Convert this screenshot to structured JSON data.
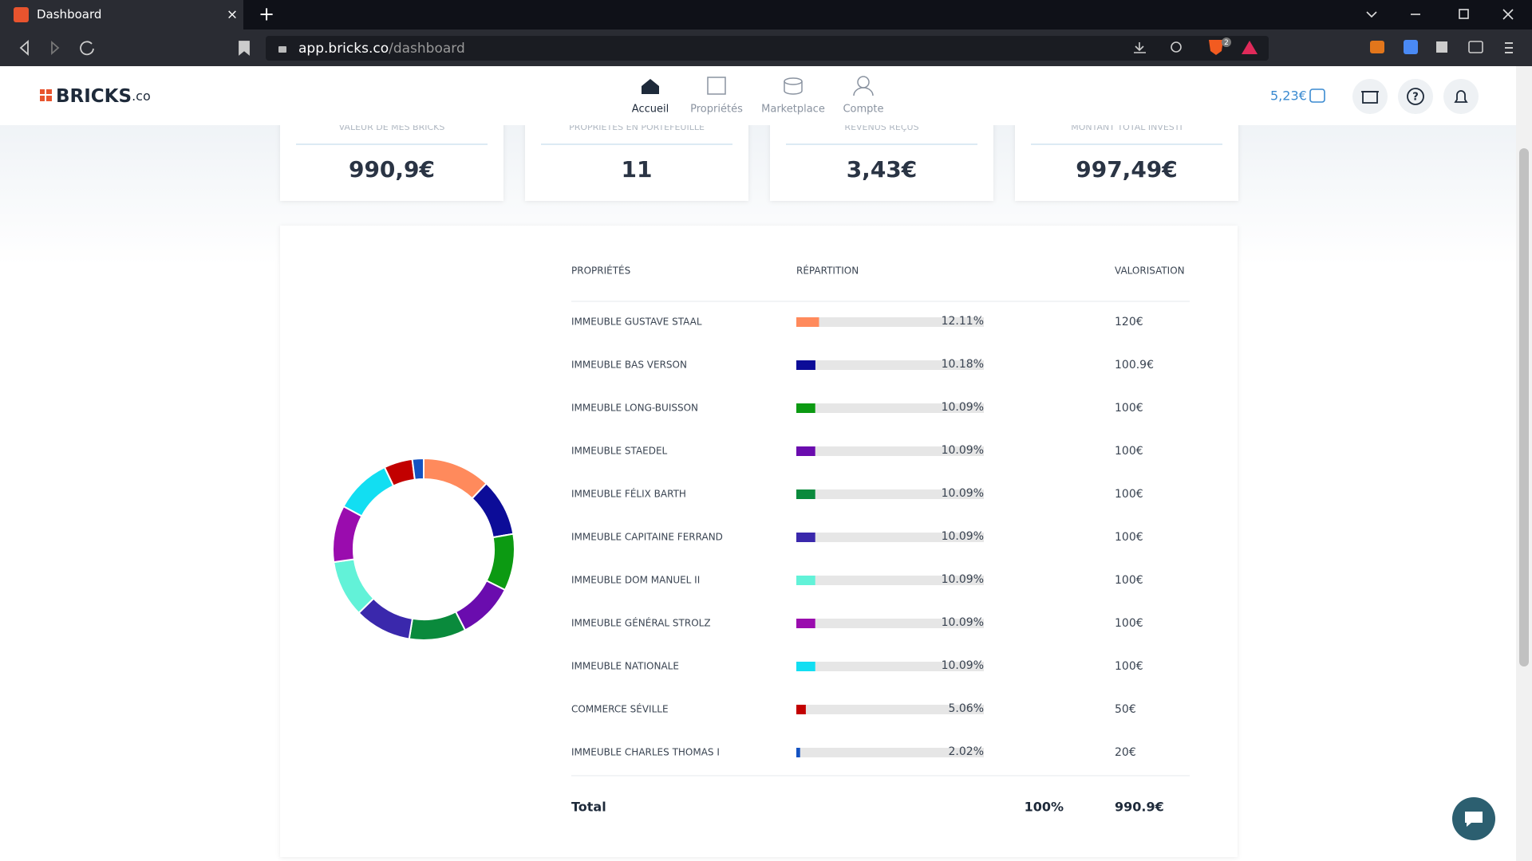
{
  "browser": {
    "tab_title": "Dashboard",
    "url_host": "app.bricks.co",
    "url_path": "/dashboard",
    "shield_count": "2"
  },
  "header": {
    "logo": "BRICKS",
    "logo_suffix": ".co",
    "nav": [
      "Accueil",
      "Propriétés",
      "Marketplace",
      "Compte"
    ],
    "balance": "5,23€"
  },
  "stats": [
    {
      "label": "VALEUR DE MES BRICKS",
      "value": "990,9€"
    },
    {
      "label": "PROPRIÉTÉS EN PORTEFEUILLE",
      "value": "11"
    },
    {
      "label": "REVENUS REÇUS",
      "value": "3,43€"
    },
    {
      "label": "MONTANT TOTAL INVESTI",
      "value": "997,49€"
    }
  ],
  "table": {
    "columns": [
      "PROPRIÉTÉS",
      "RÉPARTITION",
      "VALORISATION"
    ],
    "rows": [
      {
        "name": "IMMEUBLE GUSTAVE STAAL",
        "percent": 12.11,
        "percent_label": "12.11%",
        "valuation": "120€",
        "color": "#ff8a5c"
      },
      {
        "name": "IMMEUBLE BAS VERSON",
        "percent": 10.18,
        "percent_label": "10.18%",
        "valuation": "100.9€",
        "color": "#0c0c98"
      },
      {
        "name": "IMMEUBLE LONG-BUISSON",
        "percent": 10.09,
        "percent_label": "10.09%",
        "valuation": "100€",
        "color": "#0c9a12"
      },
      {
        "name": "IMMEUBLE STAEDEL",
        "percent": 10.09,
        "percent_label": "10.09%",
        "valuation": "100€",
        "color": "#6a0cae"
      },
      {
        "name": "IMMEUBLE FÉLIX BARTH",
        "percent": 10.09,
        "percent_label": "10.09%",
        "valuation": "100€",
        "color": "#0a8a3c"
      },
      {
        "name": "IMMEUBLE CAPITAINE FERRAND",
        "percent": 10.09,
        "percent_label": "10.09%",
        "valuation": "100€",
        "color": "#3a28ac"
      },
      {
        "name": "IMMEUBLE DOM MANUEL II",
        "percent": 10.09,
        "percent_label": "10.09%",
        "valuation": "100€",
        "color": "#62f2d8"
      },
      {
        "name": "IMMEUBLE GÉNÉRAL STROLZ",
        "percent": 10.09,
        "percent_label": "10.09%",
        "valuation": "100€",
        "color": "#9a0cae"
      },
      {
        "name": "IMMEUBLE NATIONALE",
        "percent": 10.09,
        "percent_label": "10.09%",
        "valuation": "100€",
        "color": "#12def2"
      },
      {
        "name": "COMMERCE SÉVILLE",
        "percent": 5.06,
        "percent_label": "5.06%",
        "valuation": "50€",
        "color": "#c20000"
      },
      {
        "name": "IMMEUBLE CHARLES THOMAS I",
        "percent": 2.02,
        "percent_label": "2.02%",
        "valuation": "20€",
        "color": "#1452c2"
      }
    ],
    "total": {
      "label": "Total",
      "percent": "100%",
      "valuation": "990.9€"
    }
  }
}
